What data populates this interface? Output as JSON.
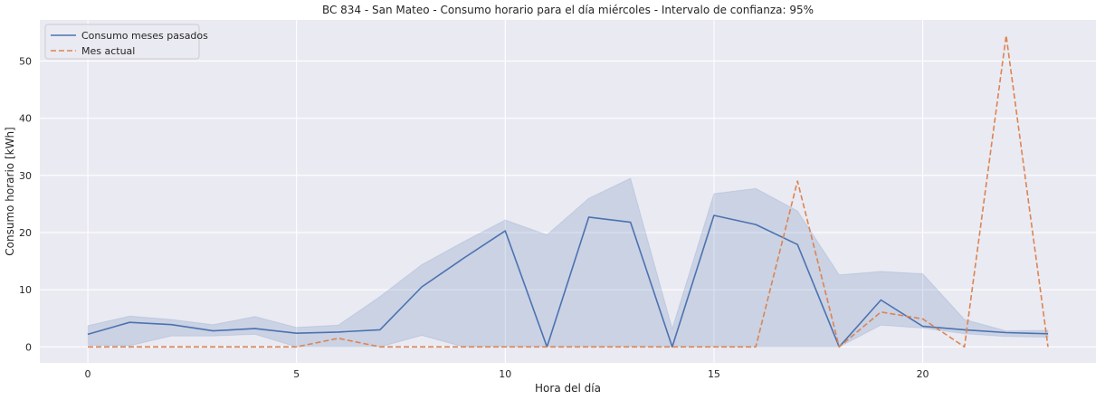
{
  "chart_data": {
    "type": "line",
    "title": "BC 834 - San Mateo - Consumo horario para el día miércoles - Intervalo de confianza: 95%",
    "xlabel": "Hora del día",
    "ylabel": "Consumo horario [kWh]",
    "xlim": [
      -1.15,
      24.15
    ],
    "ylim": [
      -2.8,
      57.2
    ],
    "xticks": [
      0,
      5,
      10,
      15,
      20
    ],
    "yticks": [
      0,
      10,
      20,
      30,
      40,
      50
    ],
    "grid": true,
    "legend_position": "top-left",
    "x": [
      0,
      1,
      2,
      3,
      4,
      5,
      6,
      7,
      8,
      9,
      10,
      11,
      12,
      13,
      14,
      15,
      16,
      17,
      18,
      19,
      20,
      21,
      22,
      23
    ],
    "series": [
      {
        "name": "Consumo meses pasados",
        "color": "#4c72b0",
        "style": "solid",
        "values": [
          2.2,
          4.3,
          3.9,
          2.8,
          3.2,
          2.4,
          2.6,
          3.0,
          10.5,
          15.5,
          20.3,
          0.0,
          22.7,
          21.8,
          0.0,
          23.0,
          21.4,
          17.9,
          0.0,
          8.2,
          3.6,
          3.0,
          2.5,
          2.3
        ],
        "ci_lower": [
          0.3,
          0.2,
          1.9,
          1.9,
          2.2,
          0.0,
          0.0,
          0.0,
          2.0,
          0.0,
          0.0,
          0.0,
          0.0,
          0.0,
          0.0,
          0.0,
          0.0,
          0.0,
          0.0,
          3.8,
          3.3,
          2.3,
          1.8,
          1.7
        ],
        "ci_upper": [
          3.7,
          5.4,
          4.8,
          3.9,
          5.3,
          3.4,
          3.8,
          8.8,
          14.4,
          18.4,
          22.2,
          19.6,
          26.0,
          29.5,
          3.2,
          26.8,
          27.7,
          23.8,
          12.6,
          13.2,
          12.8,
          4.8,
          2.8,
          2.9
        ]
      },
      {
        "name": "Mes actual",
        "color": "#dd8452",
        "style": "dashed",
        "values": [
          0,
          0,
          0,
          0,
          0,
          0,
          1.5,
          0,
          0,
          0,
          0,
          0,
          0,
          0,
          0,
          0,
          0,
          29.0,
          0,
          6.1,
          4.9,
          0,
          54.5,
          0
        ]
      }
    ]
  }
}
